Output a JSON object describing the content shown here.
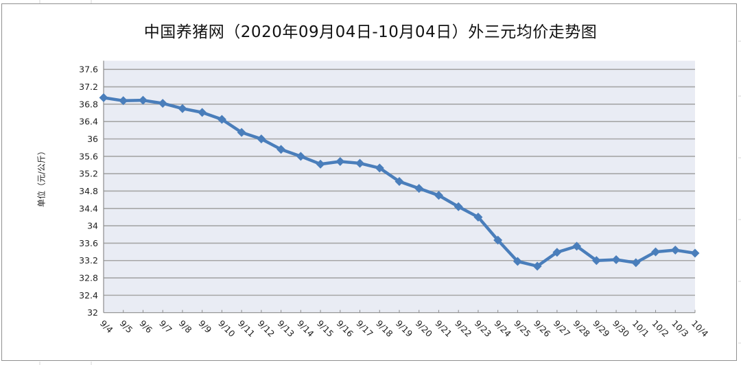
{
  "chart_data": {
    "type": "line",
    "title": "中国养猪网（2020年09月04日-10月04日）外三元均价走势图",
    "xlabel": "",
    "ylabel": "单位（元/公斤）",
    "ylim": [
      32,
      37.8
    ],
    "yticks": [
      32,
      32.4,
      32.8,
      33.2,
      33.6,
      34,
      34.4,
      34.8,
      35.2,
      35.6,
      36,
      36.4,
      36.8,
      37.2,
      37.6
    ],
    "ytick_labels": [
      "32",
      "32.4",
      "32.8",
      "33.2",
      "33.6",
      "34",
      "34.4",
      "34.8",
      "35.2",
      "35.6",
      "36",
      "36.4",
      "36.8",
      "37.2",
      "37.6"
    ],
    "grid": true,
    "legend": null,
    "categories": [
      "9/4",
      "9/5",
      "9/6",
      "9/7",
      "9/8",
      "9/9",
      "9/10",
      "9/11",
      "9/12",
      "9/13",
      "9/14",
      "9/15",
      "9/16",
      "9/17",
      "9/18",
      "9/19",
      "9/20",
      "9/21",
      "9/22",
      "9/23",
      "9/24",
      "9/25",
      "9/26",
      "9/27",
      "9/28",
      "9/29",
      "9/30",
      "10/1",
      "10/2",
      "10/3",
      "10/4"
    ],
    "series": [
      {
        "name": "外三元均价",
        "color": "#4a7ebb",
        "marker": "diamond",
        "values": [
          36.95,
          36.88,
          36.89,
          36.82,
          36.7,
          36.61,
          36.45,
          36.15,
          36.0,
          35.76,
          35.6,
          35.42,
          35.48,
          35.44,
          35.33,
          35.02,
          34.86,
          34.7,
          34.44,
          34.2,
          33.67,
          33.18,
          33.07,
          33.39,
          33.53,
          33.2,
          33.22,
          33.15,
          33.4,
          33.44,
          33.37
        ]
      }
    ]
  },
  "colors": {
    "plot_background": "#e9ecf4",
    "gridline": "#a6a6a6",
    "axis": "#8c8c8c",
    "series_line": "#4a7ebb"
  }
}
